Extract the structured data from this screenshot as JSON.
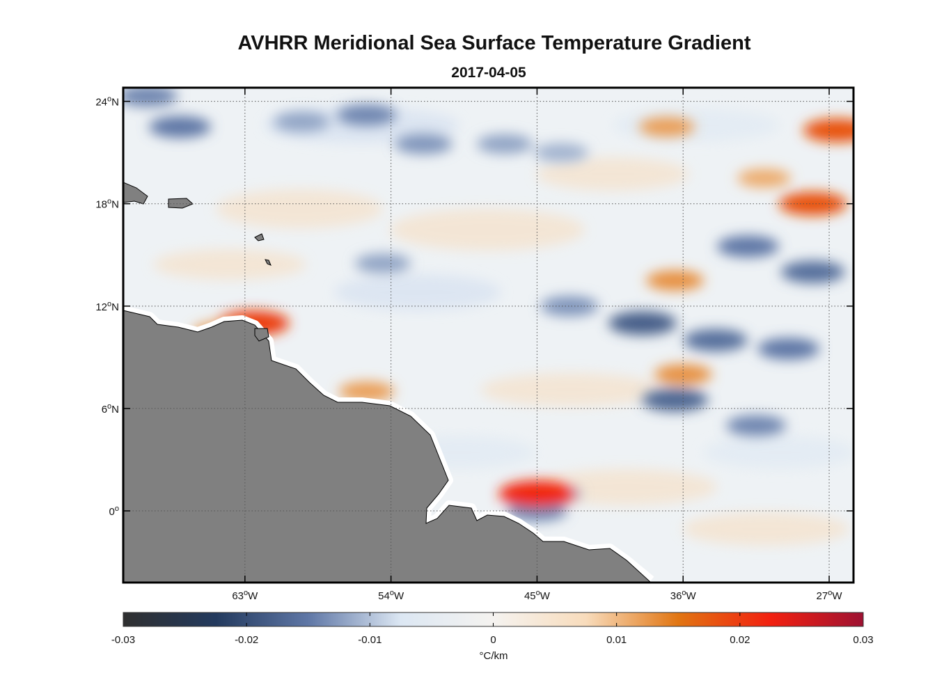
{
  "title": "AVHRR Meridional Sea Surface Temperature Gradient",
  "subtitle": "2017-04-05",
  "chart_data": {
    "type": "heatmap",
    "lon_range": [
      -70.5,
      -25.5
    ],
    "lat_range": [
      -4.2,
      24.8
    ],
    "x_ticks": [
      {
        "value": -63,
        "label": "63",
        "deg": "o",
        "hemi": "W"
      },
      {
        "value": -54,
        "label": "54",
        "deg": "o",
        "hemi": "W"
      },
      {
        "value": -45,
        "label": "45",
        "deg": "o",
        "hemi": "W"
      },
      {
        "value": -36,
        "label": "36",
        "deg": "o",
        "hemi": "W"
      },
      {
        "value": -27,
        "label": "27",
        "deg": "o",
        "hemi": "W"
      }
    ],
    "y_ticks": [
      {
        "value": 24,
        "label": "24",
        "deg": "o",
        "hemi": "N"
      },
      {
        "value": 18,
        "label": "18",
        "deg": "o",
        "hemi": "N"
      },
      {
        "value": 12,
        "label": "12",
        "deg": "o",
        "hemi": "N"
      },
      {
        "value": 6,
        "label": "6",
        "deg": "o",
        "hemi": "N"
      },
      {
        "value": 0,
        "label": "0",
        "deg": "o",
        "hemi": ""
      }
    ],
    "grid": true,
    "colorbar": {
      "range": [
        -0.03,
        0.03
      ],
      "ticks": [
        "-0.03",
        "-0.02",
        "-0.01",
        "0",
        "0.01",
        "0.02",
        "0.03"
      ],
      "units": "°C/km",
      "colors": [
        "#2f2f2f",
        "#233a5e",
        "#5f77a6",
        "#dce7f3",
        "#f5f3f0",
        "#f8dcbc",
        "#e17512",
        "#f22010",
        "#9e1232"
      ]
    },
    "land_color": "#808080",
    "gradient_features": [
      {
        "lon": -67.0,
        "lat": 22.5,
        "value": -0.015
      },
      {
        "lon": -59.5,
        "lat": 22.8,
        "value": -0.012
      },
      {
        "lon": -55.5,
        "lat": 23.2,
        "value": -0.014
      },
      {
        "lon": -52.0,
        "lat": 21.5,
        "value": -0.013
      },
      {
        "lon": -47.0,
        "lat": 21.5,
        "value": -0.012
      },
      {
        "lon": -43.5,
        "lat": 21.0,
        "value": -0.011
      },
      {
        "lon": -69.0,
        "lat": 24.3,
        "value": -0.014
      },
      {
        "lon": -32.0,
        "lat": 15.5,
        "value": -0.015
      },
      {
        "lon": -28.0,
        "lat": 14.0,
        "value": -0.016
      },
      {
        "lon": -38.5,
        "lat": 11.0,
        "value": -0.018
      },
      {
        "lon": -34.0,
        "lat": 10.0,
        "value": -0.016
      },
      {
        "lon": -29.5,
        "lat": 9.5,
        "value": -0.015
      },
      {
        "lon": -43.0,
        "lat": 12.0,
        "value": -0.013
      },
      {
        "lon": -31.5,
        "lat": 5.0,
        "value": -0.014
      },
      {
        "lon": -36.5,
        "lat": 6.5,
        "value": -0.017
      },
      {
        "lon": -44.0,
        "lat": 1.0,
        "value": -0.012
      },
      {
        "lon": -45.0,
        "lat": 0.0,
        "value": -0.014
      },
      {
        "lon": -54.5,
        "lat": 14.5,
        "value": -0.012
      },
      {
        "lon": -62.5,
        "lat": 11.0,
        "value": 0.02
      },
      {
        "lon": -64.5,
        "lat": 10.5,
        "value": 0.012
      },
      {
        "lon": -55.5,
        "lat": 7.0,
        "value": 0.012
      },
      {
        "lon": -45.0,
        "lat": 1.0,
        "value": 0.022
      },
      {
        "lon": -28.0,
        "lat": 18.0,
        "value": 0.018
      },
      {
        "lon": -26.5,
        "lat": 22.3,
        "value": 0.018
      },
      {
        "lon": -36.0,
        "lat": 8.0,
        "value": 0.013
      },
      {
        "lon": -36.5,
        "lat": 13.5,
        "value": 0.013
      },
      {
        "lon": -37.0,
        "lat": 22.5,
        "value": 0.012
      },
      {
        "lon": -31.0,
        "lat": 19.5,
        "value": 0.011
      }
    ]
  }
}
